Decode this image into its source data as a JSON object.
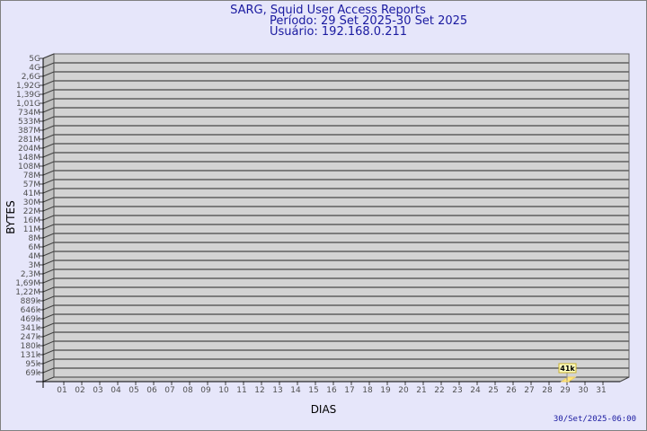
{
  "chart_data": {
    "type": "bar",
    "title": "SARG, Squid User Access Reports",
    "subtitle_period": "Período: 29 Set 2025-30 Set 2025",
    "subtitle_user": "Usuário: 192.168.0.211",
    "xlabel": "DIAS",
    "ylabel": "BYTES",
    "y_scale": "log",
    "y_ticks": [
      "5G",
      "4G",
      "2,6G",
      "1,92G",
      "1,39G",
      "1,01G",
      "734M",
      "533M",
      "387M",
      "281M",
      "204M",
      "148M",
      "108M",
      "78M",
      "57M",
      "41M",
      "30M",
      "22M",
      "16M",
      "11M",
      "8M",
      "6M",
      "4M",
      "3M",
      "2,3M",
      "1,69M",
      "1,22M",
      "889k",
      "646k",
      "469k",
      "341k",
      "247k",
      "180k",
      "131k",
      "95k",
      "69k"
    ],
    "categories": [
      "01",
      "02",
      "03",
      "04",
      "05",
      "06",
      "07",
      "08",
      "09",
      "10",
      "11",
      "12",
      "13",
      "14",
      "15",
      "16",
      "17",
      "18",
      "19",
      "20",
      "21",
      "22",
      "23",
      "24",
      "25",
      "26",
      "27",
      "28",
      "29",
      "30",
      "31"
    ],
    "series": [
      {
        "points": [
          {
            "x": "29",
            "value": 41000,
            "label": "41k"
          }
        ]
      }
    ],
    "grid": true,
    "legend": "none",
    "colors": {
      "background": "#e6e6fa",
      "wall": "#d3d3d3",
      "side_wall": "#c0c0c0",
      "bar": "#ffe680",
      "title": "#1a1aa0"
    }
  },
  "footer": {
    "timestamp": "30/Set/2025-06:00"
  }
}
